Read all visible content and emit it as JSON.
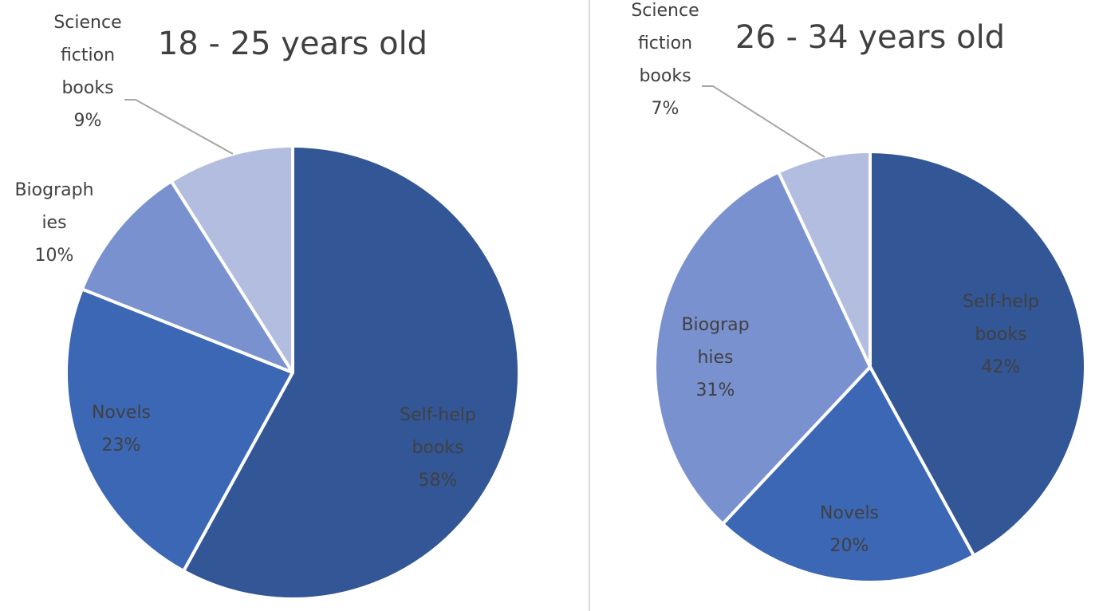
{
  "chart_data": [
    {
      "type": "pie",
      "title": "18 - 25 years old",
      "slices": [
        {
          "name": "Self-help books",
          "label_lines": [
            "Self-help",
            "books"
          ],
          "value": 58,
          "value_label": "58%",
          "color": "#335697"
        },
        {
          "name": "Novels",
          "label_lines": [
            "Novels"
          ],
          "value": 23,
          "value_label": "23%",
          "color": "#3b67b5"
        },
        {
          "name": "Biographies",
          "label_lines": [
            "Biograph",
            "ies"
          ],
          "value": 10,
          "value_label": "10%",
          "color": "#7991ce"
        },
        {
          "name": "Science fiction books",
          "label_lines": [
            "Science",
            "fiction",
            "books"
          ],
          "value": 9,
          "value_label": "9%",
          "color": "#b2bde0"
        }
      ]
    },
    {
      "type": "pie",
      "title": "26 - 34 years old",
      "slices": [
        {
          "name": "Self-help books",
          "label_lines": [
            "Self-help",
            "books"
          ],
          "value": 42,
          "value_label": "42%",
          "color": "#335697"
        },
        {
          "name": "Novels",
          "label_lines": [
            "Novels"
          ],
          "value": 20,
          "value_label": "20%",
          "color": "#3b67b5"
        },
        {
          "name": "Biographies",
          "label_lines": [
            "Biograp",
            "hies"
          ],
          "value": 31,
          "value_label": "31%",
          "color": "#7991ce"
        },
        {
          "name": "Science fiction books",
          "label_lines": [
            "Science",
            "fiction",
            "books"
          ],
          "value": 7,
          "value_label": "7%",
          "color": "#b2bde0"
        }
      ]
    }
  ]
}
